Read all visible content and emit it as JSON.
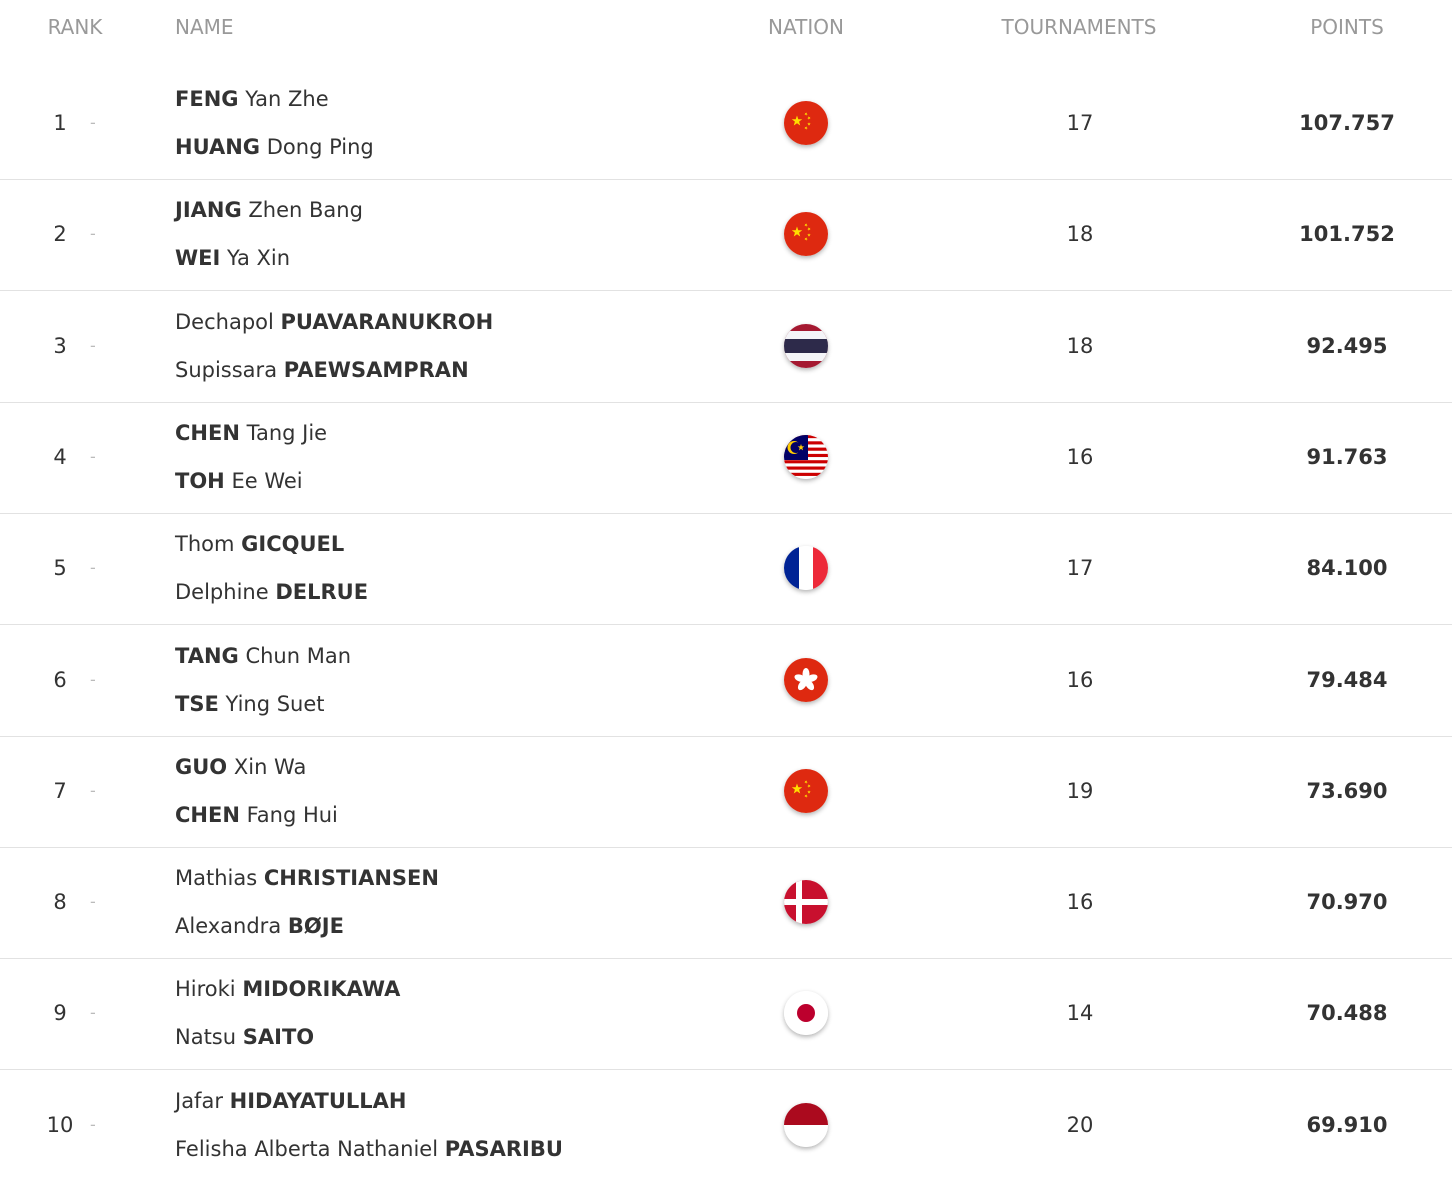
{
  "table": {
    "headers": [
      "RANK",
      "NAME",
      "NATION",
      "TOURNAMENTS",
      "POINTS"
    ],
    "rows": [
      {
        "rank": 1,
        "change": "-",
        "players": [
          {
            "family": "FENG",
            "given": "Yan Zhe",
            "family_first": true
          },
          {
            "family": "HUANG",
            "given": "Dong Ping",
            "family_first": true
          }
        ],
        "tournaments": 17,
        "points": "107.757"
      },
      {
        "rank": 2,
        "change": "-",
        "players": [
          {
            "family": "JIANG",
            "given": "Zhen Bang",
            "family_first": true
          },
          {
            "family": "WEI",
            "given": "Ya Xin",
            "family_first": true
          }
        ],
        "tournaments": 18,
        "points": "101.752"
      },
      {
        "rank": 3,
        "change": "-",
        "players": [
          {
            "family": "PUAVARANUKROH",
            "given": "Dechapol",
            "family_first": false
          },
          {
            "family": "PAEWSAMPRAN",
            "given": "Supissara",
            "family_first": false
          }
        ],
        "tournaments": 18,
        "points": "92.495"
      },
      {
        "rank": 4,
        "change": "-",
        "players": [
          {
            "family": "CHEN",
            "given": "Tang Jie",
            "family_first": true
          },
          {
            "family": "TOH",
            "given": "Ee Wei",
            "family_first": true
          }
        ],
        "tournaments": 16,
        "points": "91.763"
      },
      {
        "rank": 5,
        "change": "-",
        "players": [
          {
            "family": "GICQUEL",
            "given": "Thom",
            "family_first": false
          },
          {
            "family": "DELRUE",
            "given": "Delphine",
            "family_first": false
          }
        ],
        "tournaments": 17,
        "points": "84.100"
      },
      {
        "rank": 6,
        "change": "-",
        "players": [
          {
            "family": "TANG",
            "given": "Chun Man",
            "family_first": true
          },
          {
            "family": "TSE",
            "given": "Ying Suet",
            "family_first": true
          }
        ],
        "tournaments": 16,
        "points": "79.484"
      },
      {
        "rank": 7,
        "change": "-",
        "players": [
          {
            "family": "GUO",
            "given": "Xin Wa",
            "family_first": true
          },
          {
            "family": "CHEN",
            "given": "Fang Hui",
            "family_first": true
          }
        ],
        "tournaments": 19,
        "points": "73.690"
      },
      {
        "rank": 8,
        "change": "-",
        "players": [
          {
            "family": "CHRISTIANSEN",
            "given": "Mathias",
            "family_first": false
          },
          {
            "family": "BØJE",
            "given": "Alexandra",
            "family_first": false
          }
        ],
        "tournaments": 16,
        "points": "70.970"
      },
      {
        "rank": 9,
        "change": "-",
        "players": [
          {
            "family": "MIDORIKAWA",
            "given": "Hiroki",
            "family_first": false
          },
          {
            "family": "SAITO",
            "given": "Natsu",
            "family_first": false
          }
        ],
        "tournaments": 14,
        "points": "70.488"
      },
      {
        "rank": 10,
        "change": "-",
        "players": [
          {
            "family": "HIDAYATULLAH",
            "given": "Jafar",
            "family_first": false
          },
          {
            "family": "PASARIBU",
            "given": "Felisha Alberta Nathaniel",
            "family_first": false
          }
        ],
        "tournaments": 20,
        "points": "69.910"
      }
    ]
  }
}
